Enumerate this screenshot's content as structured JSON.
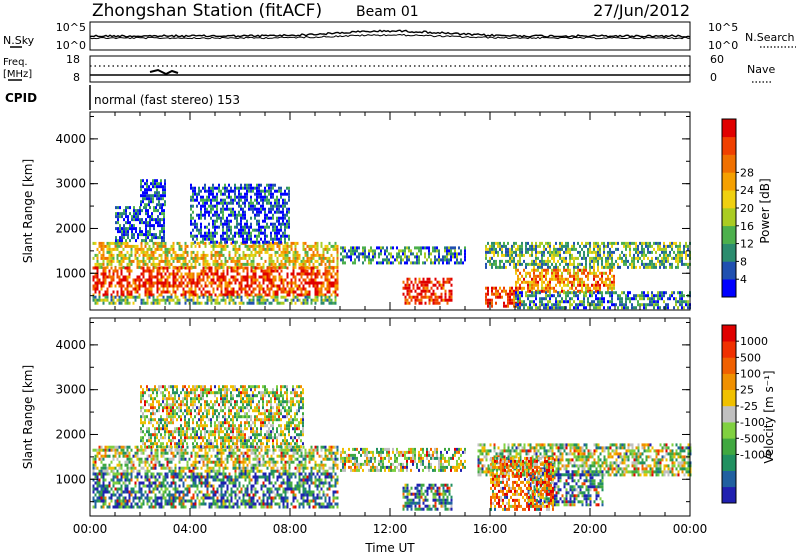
{
  "header": {
    "station": "Zhongshan Station (fitACF)",
    "beam": "Beam 01",
    "date": "27/Jun/2012"
  },
  "strip1": {
    "left_label": "N.Sky",
    "right_label": "N.Search",
    "ticks_left": [
      "10^5",
      "10^0"
    ],
    "ticks_right": [
      "10^5",
      "10^0"
    ]
  },
  "strip2": {
    "left_label_1": "Freq.",
    "left_label_2": "[MHz]",
    "right_label": "Nave",
    "ticks_left": [
      "18",
      "8"
    ],
    "ticks_right": [
      "60",
      "0"
    ]
  },
  "cpid": {
    "label": "CPID",
    "value": "normal (fast stereo) 153"
  },
  "chart_data": [
    {
      "type": "heatmap",
      "title": "",
      "xlabel": "Time UT",
      "ylabel": "Slant Range [km]",
      "x_ticks": [
        "00:00",
        "04:00",
        "08:00",
        "12:00",
        "16:00",
        "20:00",
        "00:00"
      ],
      "y_ticks": [
        "1000",
        "2000",
        "3000",
        "4000"
      ],
      "xlim": [
        0,
        24
      ],
      "ylim": [
        180,
        4600
      ],
      "colorbar": {
        "label": "Power [dB]",
        "ticks": [
          "4",
          "8",
          "12",
          "16",
          "20",
          "24",
          "28"
        ],
        "colors": [
          "#0000ff",
          "#2050b0",
          "#2b8c6e",
          "#4cb04c",
          "#aacc22",
          "#f0d010",
          "#f5a000",
          "#f07000",
          "#f04000",
          "#e00000"
        ]
      },
      "bands": [
        {
          "t0": 0.1,
          "t1": 9.9,
          "r0": 1150,
          "r1": 1700,
          "level": 0.55
        },
        {
          "t0": 0.1,
          "t1": 9.9,
          "r0": 500,
          "r1": 1150,
          "level": 0.85
        },
        {
          "t0": 0.1,
          "t1": 9.9,
          "r0": 300,
          "r1": 500,
          "level": 0.35
        },
        {
          "t0": 1.0,
          "t1": 3.0,
          "r0": 1700,
          "r1": 2500,
          "level": 0.15
        },
        {
          "t0": 2.0,
          "t1": 3.0,
          "r0": 2500,
          "r1": 3100,
          "level": 0.15
        },
        {
          "t0": 4.0,
          "t1": 8.0,
          "r0": 1700,
          "r1": 3000,
          "level": 0.15
        },
        {
          "t0": 10.0,
          "t1": 15.0,
          "r0": 1200,
          "r1": 1600,
          "level": 0.25
        },
        {
          "t0": 12.5,
          "t1": 14.5,
          "r0": 300,
          "r1": 900,
          "level": 0.9
        },
        {
          "t0": 15.8,
          "t1": 24.0,
          "r0": 1100,
          "r1": 1700,
          "level": 0.35
        },
        {
          "t0": 17.0,
          "t1": 21.0,
          "r0": 600,
          "r1": 1100,
          "level": 0.7
        },
        {
          "t0": 15.8,
          "t1": 17.2,
          "r0": 250,
          "r1": 700,
          "level": 0.85
        },
        {
          "t0": 17.0,
          "t1": 24.0,
          "r0": 250,
          "r1": 600,
          "level": 0.25
        }
      ]
    },
    {
      "type": "heatmap",
      "title": "",
      "xlabel": "Time UT",
      "ylabel": "Slant Range [km]",
      "x_ticks": [
        "00:00",
        "04:00",
        "08:00",
        "12:00",
        "16:00",
        "20:00",
        "00:00"
      ],
      "y_ticks": [
        "1000",
        "2000",
        "3000",
        "4000"
      ],
      "xlim": [
        0,
        24
      ],
      "ylim": [
        180,
        4600
      ],
      "colorbar": {
        "label": "Velocity [m s⁻¹]",
        "ticks": [
          "1000",
          "500",
          "100",
          "25",
          "-25",
          "-100",
          "-500",
          "-1000"
        ],
        "colors": [
          "#2020b0",
          "#2060a0",
          "#209060",
          "#40a840",
          "#80d040",
          "#c0c0c0",
          "#f0c000",
          "#f09000",
          "#f06000",
          "#f03000",
          "#e00000"
        ]
      },
      "bands": [
        {
          "t0": 0.1,
          "t1": 9.9,
          "r0": 1150,
          "r1": 1750,
          "level": 0.45
        },
        {
          "t0": 0.1,
          "t1": 9.9,
          "r0": 400,
          "r1": 1150,
          "level": 0.2
        },
        {
          "t0": 2.0,
          "t1": 8.5,
          "r0": 1750,
          "r1": 3100,
          "level": 0.45
        },
        {
          "t0": 10.0,
          "t1": 15.0,
          "r0": 1200,
          "r1": 1700,
          "level": 0.45
        },
        {
          "t0": 12.5,
          "t1": 14.5,
          "r0": 300,
          "r1": 900,
          "level": 0.15
        },
        {
          "t0": 15.5,
          "t1": 24.0,
          "r0": 1100,
          "r1": 1800,
          "level": 0.45
        },
        {
          "t0": 17.5,
          "t1": 20.5,
          "r0": 400,
          "r1": 1200,
          "level": 0.2
        },
        {
          "t0": 16.0,
          "t1": 18.5,
          "r0": 300,
          "r1": 1500,
          "level": 0.75
        }
      ]
    }
  ]
}
